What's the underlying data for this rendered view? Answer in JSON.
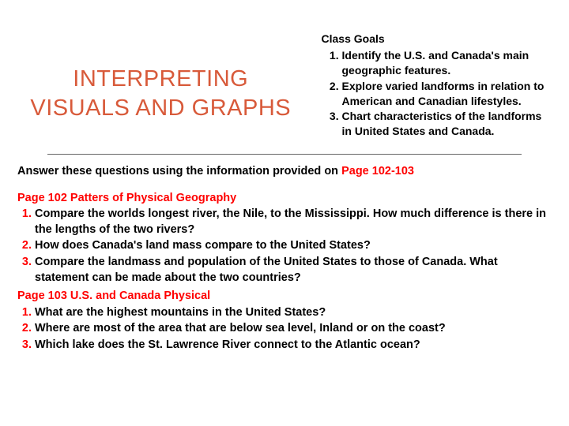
{
  "colors": {
    "title": "#d85a3a",
    "accent": "#ff0000",
    "text": "#000000",
    "divider": "#666666",
    "background": "#ffffff"
  },
  "typography": {
    "title_fontsize": 29,
    "body_fontsize": 14.5,
    "goals_fontsize": 14,
    "font_family": "Arial"
  },
  "title": "INTERPRETING VISUALS AND GRAPHS",
  "goals": {
    "heading": "Class Goals",
    "items": [
      "Identify the U.S. and Canada's main geographic features.",
      "Explore varied landforms in relation to American and Canadian lifestyles.",
      "Chart characteristics of the landforms in United States and Canada."
    ]
  },
  "prompt": {
    "lead": "Answer these questions using the information provided on ",
    "page_ref": "Page 102-103"
  },
  "sections": [
    {
      "heading": "Page 102 Patters of Physical Geography",
      "questions": [
        "Compare the worlds longest river, the Nile, to the Mississippi. How much difference is there in the lengths of the two rivers?",
        "How does Canada's land mass compare to the United States?",
        "Compare the landmass and population of the United States to those of Canada. What statement can be made about the two countries?"
      ]
    },
    {
      "heading": "Page 103 U.S. and Canada Physical",
      "questions": [
        "What are the highest mountains in the United States?",
        "Where are most of the area that are below sea level, Inland or  on the coast?",
        "Which lake does the St. Lawrence River connect to the Atlantic ocean?"
      ]
    }
  ]
}
